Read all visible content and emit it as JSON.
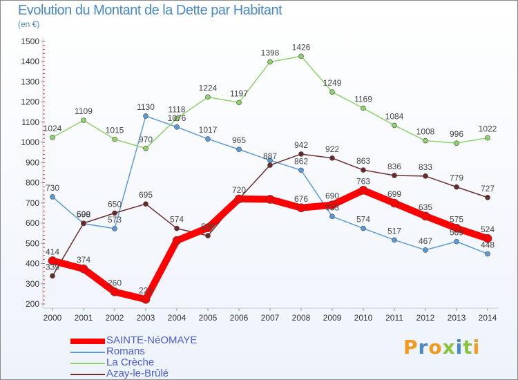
{
  "title": "Evolution du Montant de la Dette par Habitant",
  "unit": "(en €)",
  "brand": "Proxiti",
  "brand_colors": [
    "#f29a1d",
    "#4a87c4",
    "#f29a1d",
    "#8ac43f",
    "#4a87c4",
    "#8ac43f",
    "#f29a1d"
  ],
  "chart_data": {
    "type": "line",
    "categories": [
      "2000",
      "2001",
      "2002",
      "2003",
      "2004",
      "2005",
      "2006",
      "2007",
      "2008",
      "2009",
      "2010",
      "2011",
      "2012",
      "2013",
      "2014"
    ],
    "yticks": [
      "200",
      "300",
      "400",
      "500",
      "600",
      "700",
      "800",
      "900",
      "1000",
      "1100",
      "1200",
      "1300",
      "1400",
      "1500"
    ],
    "ylim": [
      200,
      1500
    ],
    "grid": false,
    "legend_position": "bottom-left",
    "series": [
      {
        "name": "SAINTE-NéOMAYE",
        "color": "#ff0000",
        "bold": true,
        "values": [
          414,
          374,
          260,
          223,
          514,
          577,
          720,
          718,
          676,
          690,
          763,
          699,
          635,
          575,
          524
        ],
        "labels": [
          "414",
          "374",
          "260",
          "223",
          "",
          "",
          "",
          "",
          "676",
          "690",
          "763",
          "699",
          "635",
          "575",
          "524"
        ]
      },
      {
        "name": "Romans",
        "color": "#5b9bd5",
        "values": [
          730,
          598,
          573,
          1130,
          1076,
          1017,
          965,
          911,
          862,
          633,
          574,
          517,
          467,
          509,
          448
        ],
        "labels": [
          "730",
          "598",
          "573",
          "1130",
          "1076",
          "1017",
          "965",
          "",
          "862",
          "633",
          "574",
          "517",
          "467",
          "509",
          "448"
        ]
      },
      {
        "name": "La Crèche",
        "color": "#8fd16a",
        "values": [
          1024,
          1109,
          1015,
          970,
          1118,
          1224,
          1197,
          1398,
          1426,
          1249,
          1169,
          1084,
          1008,
          996,
          1022
        ],
        "labels": [
          "1024",
          "1109",
          "1015",
          "970",
          "1118",
          "1224",
          "1197",
          "1398",
          "1426",
          "1249",
          "1169",
          "1084",
          "1008",
          "996",
          "1022"
        ]
      },
      {
        "name": "Azay-le-Brûlé",
        "color": "#6b2a2a",
        "values": [
          339,
          600,
          650,
          695,
          574,
          538,
          720,
          887,
          942,
          922,
          863,
          836,
          833,
          779,
          727
        ],
        "labels": [
          "339",
          "600",
          "650",
          "695",
          "574",
          "538",
          "720",
          "887",
          "942",
          "922",
          "863",
          "836",
          "833",
          "779",
          "727"
        ]
      }
    ]
  }
}
